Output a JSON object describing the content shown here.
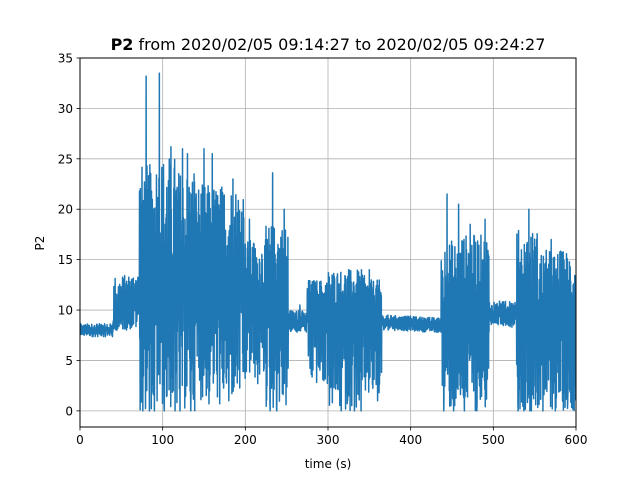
{
  "chart_data": {
    "type": "line",
    "title_bold": "P2",
    "title_rest": " from 2020/02/05 09:14:27 to 2020/02/05 09:24:27",
    "xlabel": "time (s)",
    "ylabel": "P2",
    "xlim": [
      0,
      600
    ],
    "ylim": [
      -1.6,
      35
    ],
    "xticks": [
      0,
      100,
      200,
      300,
      400,
      500,
      600
    ],
    "yticks": [
      0,
      5,
      10,
      15,
      20,
      25,
      30,
      35
    ],
    "grid": true,
    "line_color": "#1f77b4",
    "segments": [
      {
        "t0": 0,
        "t1": 40,
        "low": 7.5,
        "high": 8.8,
        "base0": 8.0,
        "base1": 8.0,
        "spikes": []
      },
      {
        "t0": 40,
        "t1": 72,
        "low": 8.0,
        "high": 13.5,
        "base0": 8.3,
        "base1": 12.5,
        "spikes": [
          [
            55,
            9.5
          ],
          [
            65,
            11.0
          ]
        ]
      },
      {
        "t0": 72,
        "t1": 92,
        "low": 0,
        "high": 24.5,
        "base0": 12.5,
        "base1": 11.5,
        "spikes": [
          [
            80,
            33.2
          ],
          [
            76,
            0
          ],
          [
            84,
            0
          ],
          [
            90,
            0
          ]
        ]
      },
      {
        "t0": 92,
        "t1": 118,
        "low": 0,
        "high": 25.5,
        "base0": 12.0,
        "base1": 11.5,
        "spikes": [
          [
            96,
            33.5
          ],
          [
            102,
            0
          ],
          [
            110,
            26.2
          ],
          [
            115,
            0
          ]
        ]
      },
      {
        "t0": 118,
        "t1": 140,
        "low": 0,
        "high": 24.0,
        "base0": 12.0,
        "base1": 12.0,
        "spikes": [
          [
            121,
            0
          ],
          [
            124,
            26.0
          ],
          [
            130,
            25.5
          ],
          [
            134,
            0
          ],
          [
            138,
            23.5
          ]
        ]
      },
      {
        "t0": 140,
        "t1": 200,
        "low": 1.0,
        "high": 22.5,
        "base0": 13.0,
        "base1": 12.0,
        "spikes": [
          [
            150,
            26.0
          ],
          [
            156,
            0
          ],
          [
            160,
            25.5
          ],
          [
            169,
            0
          ],
          [
            180,
            1.0
          ],
          [
            185,
            23.0
          ]
        ]
      },
      {
        "t0": 200,
        "t1": 225,
        "low": 3.0,
        "high": 17.0,
        "base0": 11.5,
        "base1": 11.0,
        "spikes": [
          [
            205,
            19.0
          ],
          [
            215,
            2.0
          ]
        ]
      },
      {
        "t0": 225,
        "t1": 252,
        "low": 0,
        "high": 18.5,
        "base0": 11.5,
        "base1": 11.0,
        "spikes": [
          [
            230,
            0
          ],
          [
            233,
            23.6
          ],
          [
            238,
            0
          ],
          [
            247,
            20.0
          ]
        ]
      },
      {
        "t0": 252,
        "t1": 275,
        "low": 7.8,
        "high": 10.0,
        "base0": 9.0,
        "base1": 8.8,
        "spikes": [
          [
            266,
            10.5
          ]
        ]
      },
      {
        "t0": 275,
        "t1": 300,
        "low": 2.5,
        "high": 13.0,
        "base0": 11.0,
        "base1": 10.0,
        "spikes": [
          [
            280,
            12.5
          ],
          [
            295,
            3.0
          ]
        ]
      },
      {
        "t0": 300,
        "t1": 345,
        "low": 0,
        "high": 14.0,
        "base0": 10.0,
        "base1": 10.0,
        "spikes": [
          [
            316,
            0
          ],
          [
            325,
            14.0
          ],
          [
            340,
            0
          ],
          [
            332,
            0
          ]
        ]
      },
      {
        "t0": 345,
        "t1": 365,
        "low": 1.0,
        "high": 13.0,
        "base0": 10.5,
        "base1": 9.5,
        "spikes": [
          [
            350,
            14.0
          ],
          [
            360,
            1.0
          ]
        ]
      },
      {
        "t0": 365,
        "t1": 437,
        "low": 8.0,
        "high": 9.5,
        "base0": 8.8,
        "base1": 8.5,
        "spikes": [
          [
            400,
            8.0
          ],
          [
            420,
            8.2
          ]
        ]
      },
      {
        "t0": 437,
        "t1": 462,
        "low": 0,
        "high": 17.0,
        "base0": 9.0,
        "base1": 8.5,
        "spikes": [
          [
            440,
            0
          ],
          [
            444,
            21.5
          ],
          [
            452,
            0
          ],
          [
            458,
            20.5
          ]
        ]
      },
      {
        "t0": 462,
        "t1": 495,
        "low": 0,
        "high": 17.5,
        "base0": 11.0,
        "base1": 10.0,
        "spikes": [
          [
            465,
            0
          ],
          [
            472,
            18.5
          ],
          [
            480,
            0
          ],
          [
            490,
            19.0
          ]
        ]
      },
      {
        "t0": 495,
        "t1": 528,
        "low": 8.5,
        "high": 11.0,
        "base0": 9.8,
        "base1": 9.5,
        "spikes": [
          [
            515,
            8.5
          ]
        ]
      },
      {
        "t0": 528,
        "t1": 555,
        "low": 0,
        "high": 18.0,
        "base0": 10.0,
        "base1": 9.0,
        "spikes": [
          [
            530,
            0
          ],
          [
            543,
            20.0
          ],
          [
            546,
            0
          ],
          [
            537,
            0
          ]
        ]
      },
      {
        "t0": 555,
        "t1": 600,
        "low": 0,
        "high": 16.0,
        "base0": 9.5,
        "base1": 9.0,
        "spikes": [
          [
            560,
            0
          ],
          [
            570,
            17.0
          ],
          [
            575,
            0
          ],
          [
            590,
            1.0
          ]
        ]
      }
    ]
  }
}
